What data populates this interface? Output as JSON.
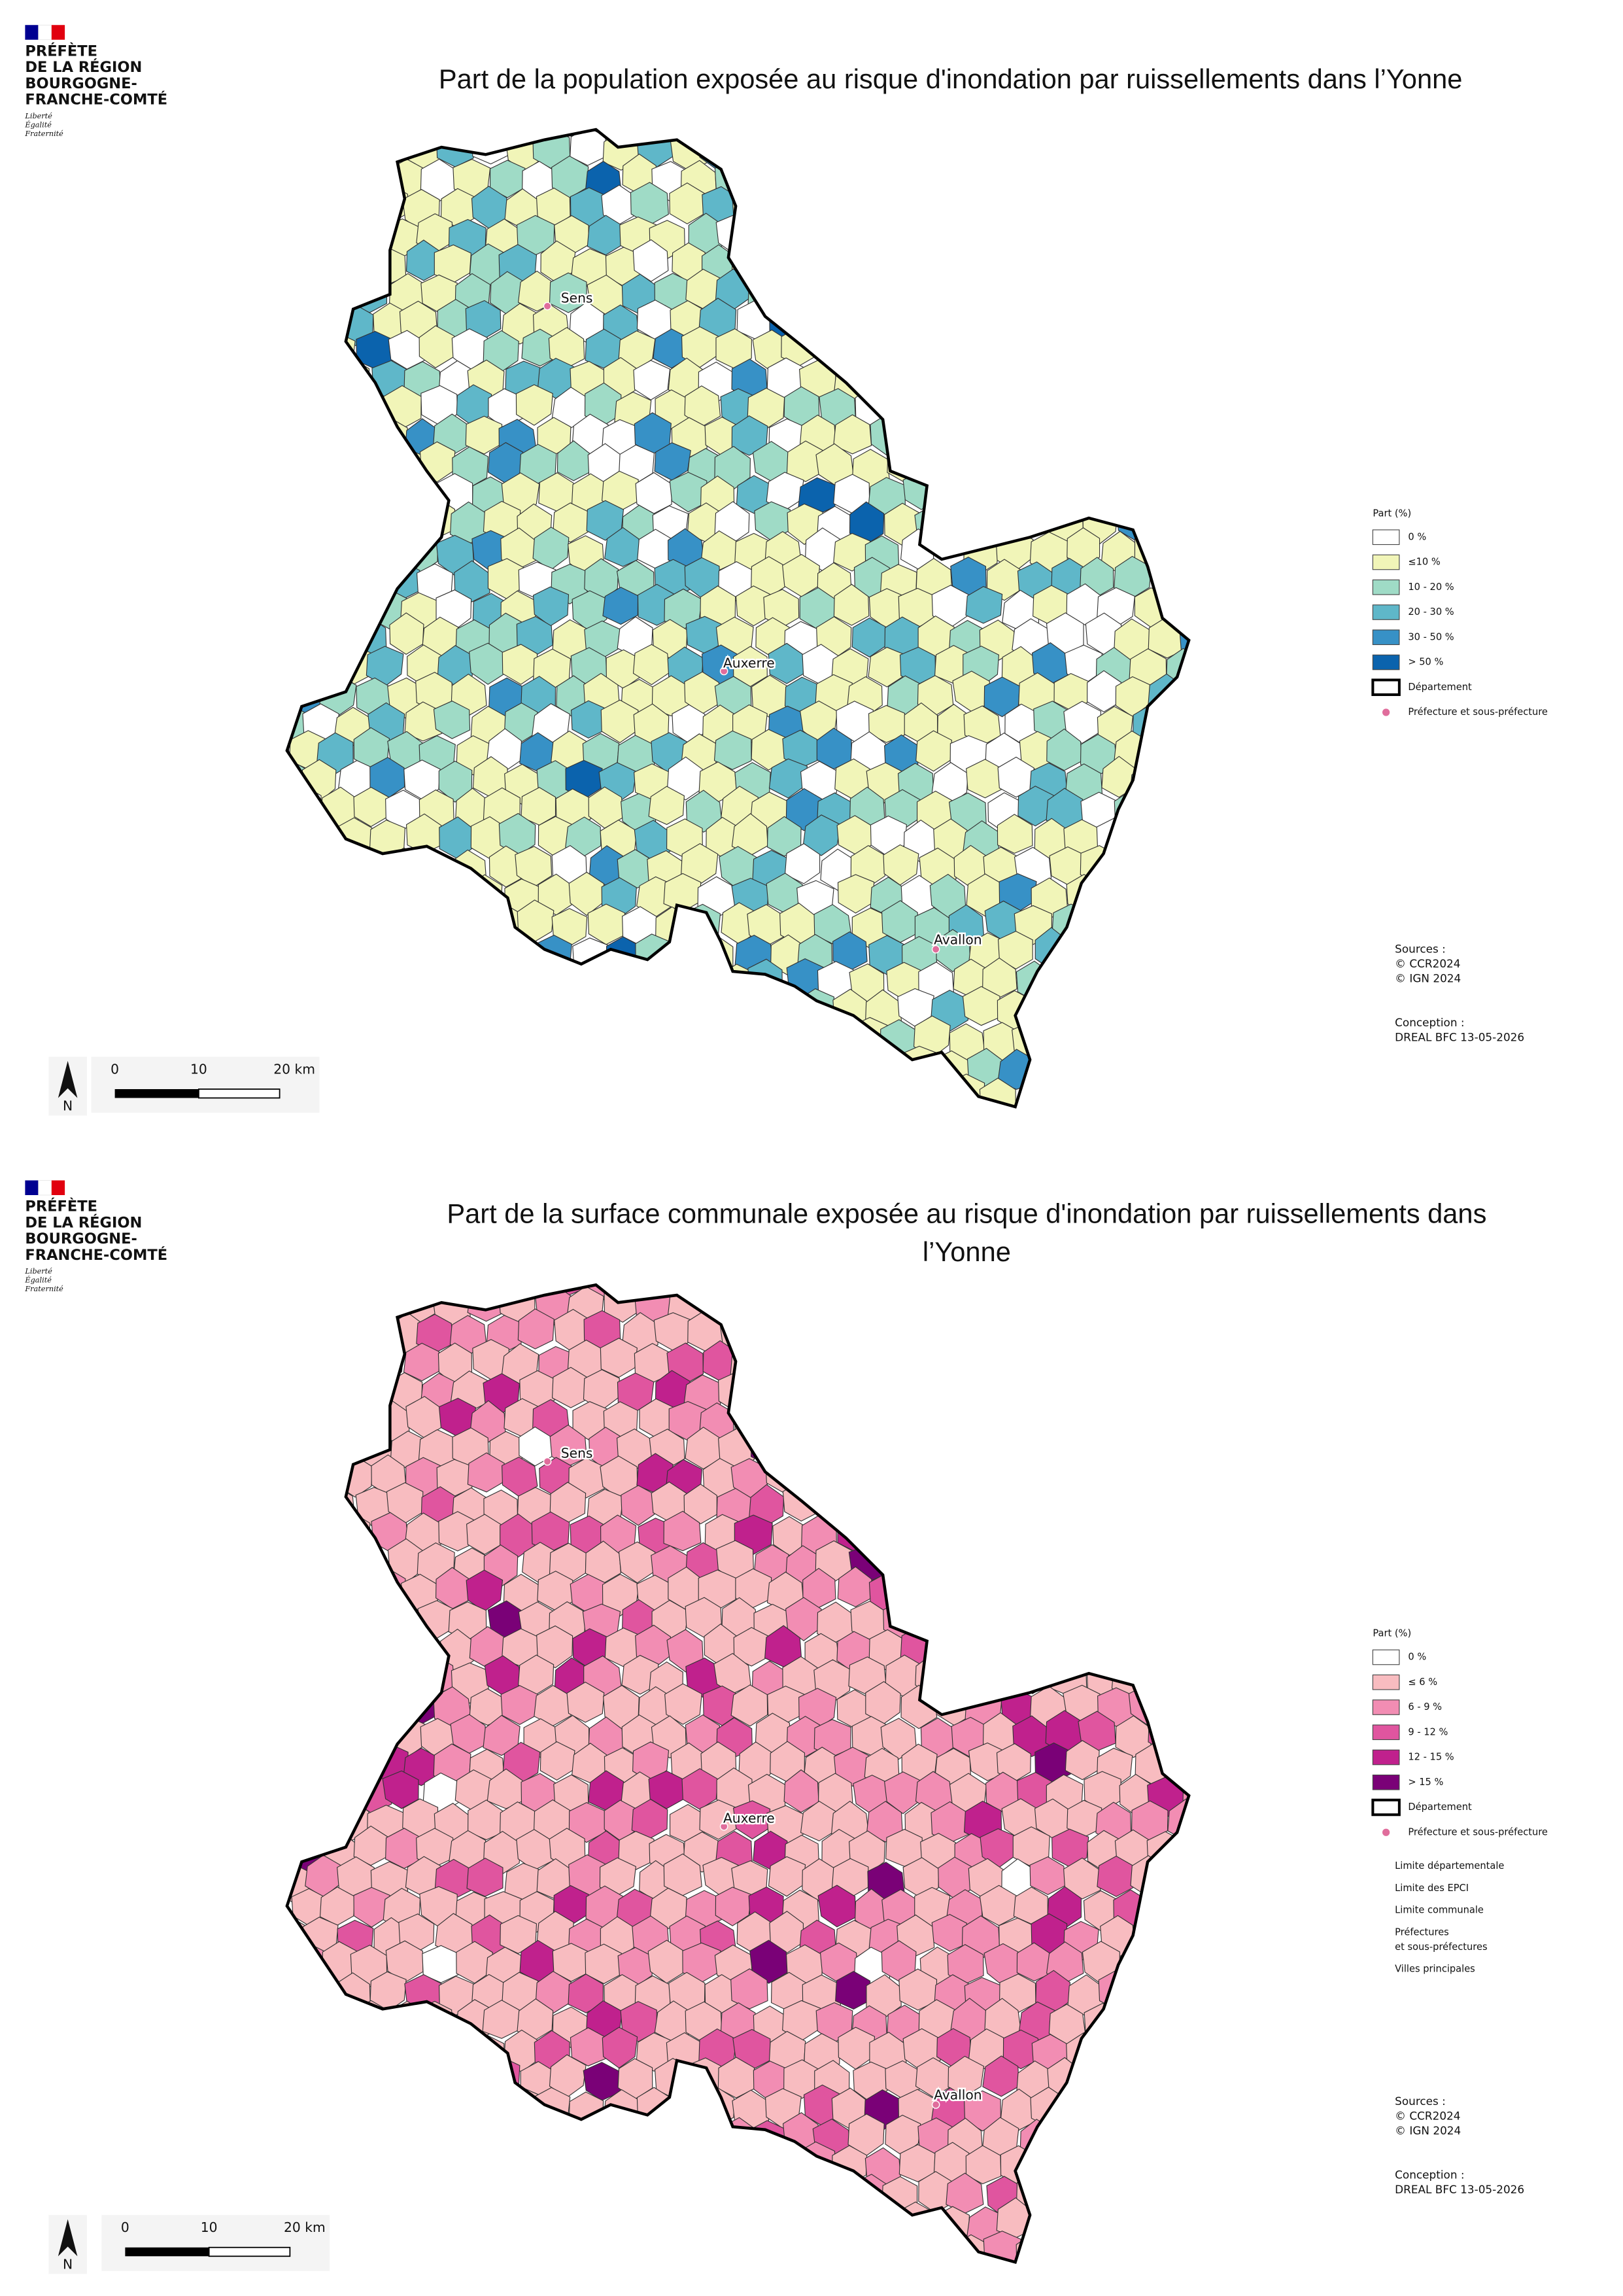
{
  "panels": [
    {
      "logo": {
        "lines": [
          "PRÉFÈTE",
          "DE LA RÉGION",
          "BOURGOGNE-",
          "FRANCHE-COMTÉ"
        ],
        "motto": [
          "Liberté",
          "Égalité",
          "Fraternité"
        ]
      },
      "title": [
        "Part de la population exposée au risque d'inondation par ruissellements dans l’Yonne"
      ],
      "cities": [
        "Sens",
        "Auxerre",
        "Avallon"
      ],
      "legend": {
        "title": "Part (%)",
        "items": [
          {
            "label": "0 %",
            "color": "#ffffff"
          },
          {
            "label": "≤10 %",
            "color": "#f1f5b8"
          },
          {
            "label": "10 - 20 %",
            "color": "#9fdbc6"
          },
          {
            "label": "20 - 30 %",
            "color": "#5fb7c9"
          },
          {
            "label": "30 - 50 %",
            "color": "#3791c6"
          },
          {
            "label": "> 50 %",
            "color": "#0b63ad"
          }
        ],
        "department": "Département",
        "prefecture": "Préfecture et sous-préfecture",
        "extra": []
      },
      "sources": [
        "Sources :",
        "© CCR2024",
        "© IGN 2024"
      ],
      "conception": [
        "Conception :",
        "DREAL BFC 13-05-2026"
      ],
      "scale": {
        "labels": [
          "0",
          "10",
          "20 km"
        ],
        "north": "N"
      }
    },
    {
      "logo": {
        "lines": [
          "PRÉFÈTE",
          "DE LA RÉGION",
          "BOURGOGNE-",
          "FRANCHE-COMTÉ"
        ],
        "motto": [
          "Liberté",
          "Égalité",
          "Fraternité"
        ]
      },
      "title": [
        "Part de la surface communale exposée au risque d'inondation par ruissellements dans",
        "l’Yonne"
      ],
      "cities": [
        "Sens",
        "Auxerre",
        "Avallon"
      ],
      "legend": {
        "title": "Part (%)",
        "items": [
          {
            "label": "0 %",
            "color": "#ffffff"
          },
          {
            "label": "≤ 6 %",
            "color": "#f8bcc0"
          },
          {
            "label": "6 - 9 %",
            "color": "#f28db3"
          },
          {
            "label": "9 - 12 %",
            "color": "#e0559f"
          },
          {
            "label": "12 - 15 %",
            "color": "#c0218d"
          },
          {
            "label": "> 15 %",
            "color": "#7a0177"
          }
        ],
        "department": "Département",
        "prefecture": "Préfecture et sous-préfecture",
        "extra": [
          "Limite départementale",
          "Limite des EPCI",
          "Limite communale",
          "Préfectures",
          "et sous-préfectures",
          "Villes principales"
        ]
      },
      "sources": [
        "Sources :",
        "© CCR2024",
        "© IGN 2024"
      ],
      "conception": [
        "Conception :",
        "DREAL BFC 13-05-2026"
      ],
      "scale": {
        "labels": [
          "0",
          "10",
          "20 km"
        ],
        "north": "N"
      }
    }
  ]
}
